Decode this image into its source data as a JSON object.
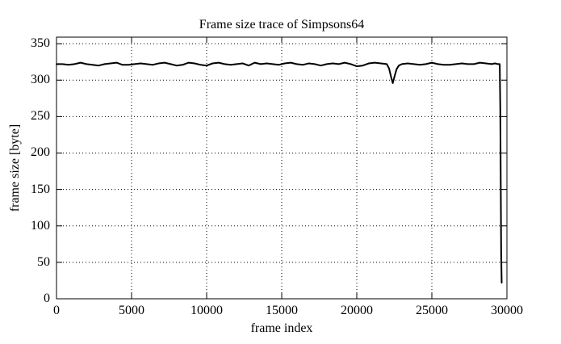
{
  "colors": {
    "background": "#ffffff",
    "foreground": "#000000",
    "line": "#000000",
    "grid": "#000000"
  },
  "chart_data": {
    "type": "line",
    "title": "Frame size trace of Simpsons64",
    "xlabel": "frame index",
    "ylabel": "frame size [byte]",
    "xlim": [
      0,
      30000
    ],
    "ylim": [
      0,
      359
    ],
    "xticks": [
      0,
      5000,
      10000,
      15000,
      20000,
      25000,
      30000
    ],
    "yticks": [
      0,
      50,
      100,
      150,
      200,
      250,
      300,
      350
    ],
    "grid": true,
    "grid_style": "dotted",
    "legend": false,
    "series": [
      {
        "name": "frame size",
        "color": "#000000",
        "points": [
          [
            0,
            322
          ],
          [
            400,
            322
          ],
          [
            800,
            321
          ],
          [
            1200,
            322
          ],
          [
            1600,
            324
          ],
          [
            2000,
            322
          ],
          [
            2400,
            321
          ],
          [
            2800,
            320
          ],
          [
            3200,
            322
          ],
          [
            3600,
            323
          ],
          [
            4000,
            324
          ],
          [
            4400,
            321
          ],
          [
            4800,
            321
          ],
          [
            5200,
            322
          ],
          [
            5600,
            323
          ],
          [
            6000,
            322
          ],
          [
            6400,
            321
          ],
          [
            6800,
            323
          ],
          [
            7200,
            324
          ],
          [
            7600,
            322
          ],
          [
            8000,
            320
          ],
          [
            8400,
            321
          ],
          [
            8800,
            324
          ],
          [
            9200,
            323
          ],
          [
            9600,
            321
          ],
          [
            10000,
            320
          ],
          [
            10400,
            323
          ],
          [
            10800,
            324
          ],
          [
            11200,
            322
          ],
          [
            11600,
            321
          ],
          [
            12000,
            322
          ],
          [
            12400,
            323
          ],
          [
            12800,
            320
          ],
          [
            13200,
            324
          ],
          [
            13600,
            322
          ],
          [
            14000,
            323
          ],
          [
            14400,
            322
          ],
          [
            14800,
            321
          ],
          [
            15200,
            323
          ],
          [
            15600,
            324
          ],
          [
            16000,
            322
          ],
          [
            16400,
            321
          ],
          [
            16800,
            323
          ],
          [
            17200,
            322
          ],
          [
            17600,
            320
          ],
          [
            18000,
            322
          ],
          [
            18400,
            323
          ],
          [
            18800,
            322
          ],
          [
            19200,
            324
          ],
          [
            19600,
            322
          ],
          [
            20000,
            319
          ],
          [
            20400,
            320
          ],
          [
            20800,
            323
          ],
          [
            21200,
            324
          ],
          [
            21600,
            323
          ],
          [
            22000,
            322
          ],
          [
            22150,
            316
          ],
          [
            22300,
            303
          ],
          [
            22400,
            296
          ],
          [
            22500,
            304
          ],
          [
            22650,
            315
          ],
          [
            22800,
            320
          ],
          [
            23000,
            322
          ],
          [
            23400,
            323
          ],
          [
            23800,
            322
          ],
          [
            24200,
            321
          ],
          [
            24600,
            322
          ],
          [
            25000,
            324
          ],
          [
            25400,
            322
          ],
          [
            25800,
            321
          ],
          [
            26200,
            321
          ],
          [
            26600,
            322
          ],
          [
            27000,
            323
          ],
          [
            27400,
            322
          ],
          [
            27800,
            322
          ],
          [
            28200,
            324
          ],
          [
            28600,
            323
          ],
          [
            29000,
            322
          ],
          [
            29200,
            323
          ],
          [
            29400,
            322
          ],
          [
            29520,
            322
          ],
          [
            29560,
            260
          ],
          [
            29590,
            150
          ],
          [
            29620,
            60
          ],
          [
            29650,
            22
          ]
        ]
      }
    ]
  }
}
